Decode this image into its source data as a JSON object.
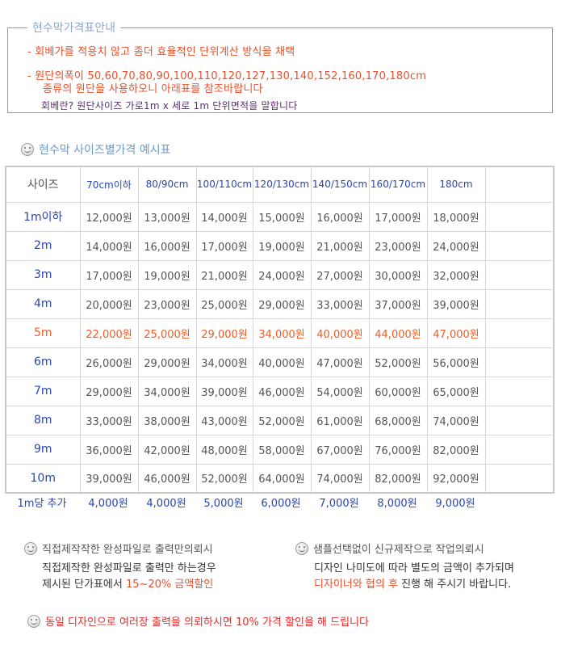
{
  "info": {
    "title": "현수막가격표안내",
    "line1": "- 회베가를  적용치 않고 좀더 효율적인 단위계산 방식을 채택",
    "line2": "-  원단의폭이 50,60,70,80,90,100,110,120,127,130,140,152,160,170,180cm",
    "line3": "종류의 원단을 사용하오니 아래표를 참조바랍니다",
    "line4": "회베란? 원단사이즈 가로1m x 세로 1m 단위면적을 말합니다"
  },
  "section_title": "현수막 사이즈별가격 예시표",
  "table": {
    "headers": [
      "사이즈",
      "70cm이하",
      "80/90cm",
      "100/110cm",
      "120/130cm",
      "140/150cm",
      "160/170cm",
      "180cm",
      ""
    ],
    "rows": [
      {
        "size": "1m이하",
        "prices": [
          "12,000원",
          "13,000원",
          "14,000원",
          "15,000원",
          "16,000원",
          "17,000원",
          "18,000원"
        ]
      },
      {
        "size": "2m",
        "prices": [
          "14,000원",
          "16,000원",
          "17,000원",
          "19,000원",
          "21,000원",
          "23,000원",
          "24,000원"
        ]
      },
      {
        "size": "3m",
        "prices": [
          "17,000원",
          "19,000원",
          "21,000원",
          "24,000원",
          "27,000원",
          "30,000원",
          "32,000원"
        ]
      },
      {
        "size": "4m",
        "prices": [
          "20,000원",
          "23,000원",
          "25,000원",
          "29,000원",
          "33,000원",
          "37,000원",
          "39,000원"
        ]
      },
      {
        "size": "5m",
        "prices": [
          "22,000원",
          "25,000원",
          "29,000원",
          "34,000원",
          "40,000원",
          "44,000원",
          "47,000원"
        ],
        "highlight": true
      },
      {
        "size": "6m",
        "prices": [
          "26,000원",
          "29,000원",
          "34,000원",
          "40,000원",
          "47,000원",
          "52,000원",
          "56,000원"
        ]
      },
      {
        "size": "7m",
        "prices": [
          "29,000원",
          "34,000원",
          "39,000원",
          "46,000원",
          "54,000원",
          "60,000원",
          "65,000원"
        ]
      },
      {
        "size": "8m",
        "prices": [
          "33,000원",
          "38,000원",
          "43,000원",
          "52,000원",
          "61,000원",
          "68,000원",
          "74,000원"
        ]
      },
      {
        "size": "9m",
        "prices": [
          "36,000원",
          "42,000원",
          "48,000원",
          "58,000원",
          "67,000원",
          "76,000원",
          "82,000원"
        ]
      },
      {
        "size": "10m",
        "prices": [
          "39,000원",
          "46,000원",
          "52,000원",
          "64,000원",
          "74,000원",
          "82,000원",
          "92,000원"
        ]
      }
    ],
    "extra_label": "1m당 추가",
    "extra_prices": [
      "4,000원",
      "4,000원",
      "5,000원",
      "6,000원",
      "7,000원",
      "8,000원",
      "9,000원"
    ]
  },
  "notes": {
    "left_title": "직접제작작한 완성파일로 출력만의뢰시",
    "left_line1": "직접제작한 완성파일로 출력만 하는경우",
    "left_line2_pre": "제시된 단가표에서 ",
    "left_line2_red": "15~20% 금액할인",
    "right_title": "샘플선택없이  신규제작으로 작업의뢰시",
    "right_line1": "디자인 나미도에 따라 별도의 금액이 추가되며",
    "right_line2_red": "디자이너와 협의 후",
    "right_line2_post": " 진행 해 주시기 바랍니다.",
    "bottom": "동일 디자인으로 여러장 출력을 의뢰하시면 10% 가격 할인을 해 드립니다"
  },
  "colors": {
    "accent": "#2a45b3",
    "highlight": "#f05b24",
    "notice": "#e62b2b"
  }
}
